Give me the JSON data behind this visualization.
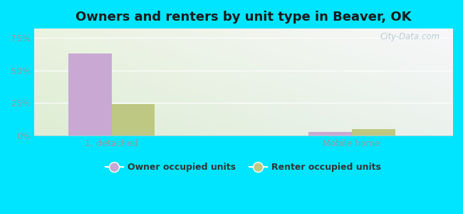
{
  "title": "Owners and renters by unit type in Beaver, OK",
  "categories": [
    "1, detached",
    "Mobile home"
  ],
  "owner_values": [
    63.0,
    3.0
  ],
  "renter_values": [
    24.0,
    5.0
  ],
  "owner_color": "#c9a8d4",
  "renter_color": "#bec882",
  "yticks": [
    0,
    25,
    50,
    75
  ],
  "ylim": [
    0,
    82
  ],
  "background_color": "#00e5ff",
  "legend_owner": "Owner occupied units",
  "legend_renter": "Renter occupied units",
  "bar_width": 0.28,
  "title_fontsize": 13,
  "watermark": "City-Data.com",
  "tick_color": "#999999",
  "grid_color": "#ffffff",
  "x_positions": [
    0.55,
    2.1
  ],
  "xlim": [
    0.05,
    2.75
  ]
}
